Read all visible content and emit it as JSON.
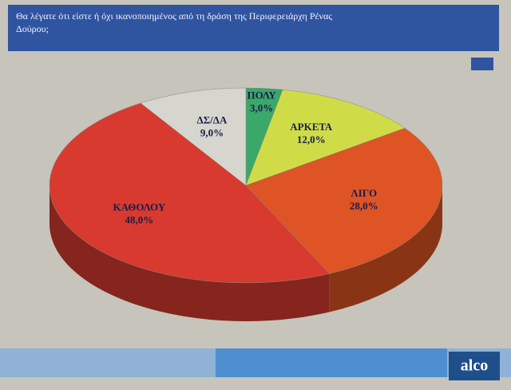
{
  "chart_data": {
    "type": "pie",
    "title": "Θα λέγατε ότι είστε ή όχι ικανοποιημένος από τη δράση της Περιφερειάρχη Ρένας Δούρου;",
    "categories": [
      "ΠΟΛΥ",
      "ΑΡΚΕΤΑ",
      "ΛΙΓΟ",
      "ΚΑΘΟΛΟΥ",
      "ΔΣ/ΔΑ"
    ],
    "values": [
      3,
      12,
      28,
      48,
      9
    ],
    "value_labels": [
      "3,0%",
      "12,0%",
      "28,0%",
      "48,0%",
      "9,0%"
    ],
    "colors": [
      "#3aa868",
      "#cfdc48",
      "#de5424",
      "#d83a30",
      "#d6d6ce"
    ]
  },
  "logo": "alco"
}
